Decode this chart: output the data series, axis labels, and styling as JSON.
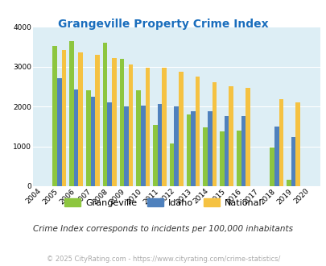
{
  "title": "Grangeville Property Crime Index",
  "title_color": "#1a6ebd",
  "years": [
    2004,
    2005,
    2006,
    2007,
    2008,
    2009,
    2010,
    2011,
    2012,
    2013,
    2014,
    2015,
    2016,
    2017,
    2018,
    2019,
    2020
  ],
  "grangeville": [
    0,
    3520,
    3630,
    2400,
    3600,
    3200,
    2400,
    1540,
    1080,
    1790,
    1480,
    1380,
    1400,
    0,
    960,
    165,
    0
  ],
  "idaho": [
    0,
    2700,
    2430,
    2240,
    2110,
    1990,
    2030,
    2070,
    2010,
    1870,
    1880,
    1760,
    1760,
    0,
    1490,
    1230,
    0
  ],
  "national": [
    0,
    3420,
    3360,
    3290,
    3220,
    3060,
    2960,
    2960,
    2870,
    2750,
    2600,
    2500,
    2460,
    0,
    2180,
    2100,
    0
  ],
  "grangeville_color": "#8dc63f",
  "idaho_color": "#4f81bd",
  "national_color": "#f5c242",
  "bg_color": "#ddeef5",
  "ylim": [
    0,
    4000
  ],
  "yticks": [
    0,
    1000,
    2000,
    3000,
    4000
  ],
  "subtitle": "Crime Index corresponds to incidents per 100,000 inhabitants",
  "footer": "© 2025 CityRating.com - https://www.cityrating.com/crime-statistics/",
  "legend_labels": [
    "Grangeville",
    "Idaho",
    "National"
  ],
  "bar_width": 0.27
}
